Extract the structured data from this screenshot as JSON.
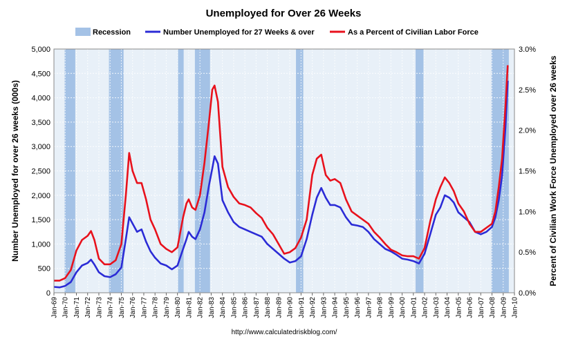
{
  "chart_data": {
    "type": "line",
    "title": "Unemployed for Over 26 Weeks",
    "ylabel": "Number Unemployed for over 26 weeks (000s)",
    "y2label": "Percent of Civilian Work Force Unemployed over 26 weeks",
    "source": "http://www.calculatedriskblog.com/",
    "ylim": [
      0,
      5000
    ],
    "y2lim": [
      0,
      3.0
    ],
    "yticks": [
      "0",
      "500",
      "1,000",
      "1,500",
      "2,000",
      "2,500",
      "3,000",
      "3,500",
      "4,000",
      "4,500",
      "5,000"
    ],
    "y2ticks": [
      "0.0%",
      "0.5%",
      "1.0%",
      "1.5%",
      "2.0%",
      "2.5%",
      "3.0%"
    ],
    "xticks": [
      "Jan-69",
      "Jan-70",
      "Jan-71",
      "Jan-72",
      "Jan-73",
      "Jan-74",
      "Jan-75",
      "Jan-76",
      "Jan-77",
      "Jan-78",
      "Jan-79",
      "Jan-80",
      "Jan-81",
      "Jan-82",
      "Jan-83",
      "Jan-84",
      "Jan-85",
      "Jan-86",
      "Jan-87",
      "Jan-88",
      "Jan-89",
      "Jan-90",
      "Jan-91",
      "Jan-92",
      "Jan-93",
      "Jan-94",
      "Jan-95",
      "Jan-96",
      "Jan-97",
      "Jan-98",
      "Jan-99",
      "Jan-00",
      "Jan-01",
      "Jan-02",
      "Jan-03",
      "Jan-04",
      "Jan-05",
      "Jan-06",
      "Jan-07",
      "Jan-08",
      "Jan-09",
      "Jan-10"
    ],
    "xrange": [
      1969,
      2010
    ],
    "legend": [
      "Recession",
      "Number Unemployed for 27 Weeks & over",
      "As a Percent of Civilian Labor Force"
    ],
    "colors": {
      "recession": "#a4c2e6",
      "number": "#2b2bd6",
      "percent": "#e8111c",
      "plot_bg": "#e8f0f8"
    },
    "recessions": [
      [
        1969.95,
        1970.9
      ],
      [
        1973.9,
        1975.2
      ],
      [
        1980.05,
        1980.55
      ],
      [
        1981.55,
        1982.9
      ],
      [
        1990.55,
        1991.2
      ],
      [
        2001.2,
        2001.9
      ],
      [
        2007.95,
        2009.5
      ]
    ],
    "series": [
      {
        "name": "Number Unemployed for 27 Weeks & over",
        "axis": "left",
        "x": [
          1969.0,
          1969.5,
          1970.0,
          1970.5,
          1971.0,
          1971.5,
          1972.0,
          1972.3,
          1972.6,
          1973.0,
          1973.5,
          1974.0,
          1974.5,
          1975.0,
          1975.4,
          1975.7,
          1976.0,
          1976.4,
          1976.8,
          1977.2,
          1977.6,
          1978.0,
          1978.5,
          1979.0,
          1979.5,
          1980.0,
          1980.5,
          1980.8,
          1981.0,
          1981.3,
          1981.6,
          1982.0,
          1982.4,
          1982.8,
          1983.1,
          1983.3,
          1983.6,
          1984.0,
          1984.5,
          1985.0,
          1985.5,
          1986.0,
          1986.5,
          1987.0,
          1987.5,
          1988.0,
          1988.5,
          1989.0,
          1989.5,
          1990.0,
          1990.5,
          1991.0,
          1991.5,
          1992.0,
          1992.4,
          1992.8,
          1993.2,
          1993.6,
          1994.0,
          1994.5,
          1995.0,
          1995.5,
          1996.0,
          1996.5,
          1997.0,
          1997.5,
          1998.0,
          1998.5,
          1999.0,
          1999.5,
          2000.0,
          2000.5,
          2001.0,
          2001.5,
          2002.0,
          2002.5,
          2003.0,
          2003.4,
          2003.8,
          2004.2,
          2004.6,
          2005.0,
          2005.5,
          2006.0,
          2006.5,
          2007.0,
          2007.5,
          2008.0,
          2008.3,
          2008.6,
          2008.9,
          2009.2,
          2009.4
        ],
        "values": [
          120,
          110,
          140,
          220,
          420,
          560,
          610,
          680,
          580,
          420,
          340,
          320,
          380,
          520,
          1100,
          1550,
          1420,
          1250,
          1300,
          1050,
          850,
          720,
          600,
          560,
          480,
          560,
          900,
          1100,
          1250,
          1150,
          1100,
          1300,
          1650,
          2200,
          2550,
          2800,
          2650,
          1900,
          1650,
          1450,
          1350,
          1300,
          1250,
          1200,
          1150,
          1000,
          900,
          800,
          700,
          620,
          650,
          750,
          1100,
          1600,
          1950,
          2150,
          1950,
          1800,
          1800,
          1750,
          1550,
          1400,
          1380,
          1350,
          1250,
          1100,
          1000,
          900,
          850,
          780,
          700,
          680,
          650,
          600,
          800,
          1200,
          1600,
          1750,
          2000,
          1950,
          1850,
          1650,
          1550,
          1450,
          1250,
          1200,
          1250,
          1350,
          1550,
          1900,
          2400,
          3400,
          4350
        ]
      },
      {
        "name": "As a Percent of Civilian Labor Force",
        "axis": "right",
        "x": [
          1969.0,
          1969.5,
          1970.0,
          1970.5,
          1971.0,
          1971.5,
          1972.0,
          1972.3,
          1972.6,
          1973.0,
          1973.5,
          1974.0,
          1974.5,
          1975.0,
          1975.4,
          1975.7,
          1976.0,
          1976.4,
          1976.8,
          1977.2,
          1977.6,
          1978.0,
          1978.5,
          1979.0,
          1979.5,
          1980.0,
          1980.5,
          1980.8,
          1981.0,
          1981.3,
          1981.6,
          1982.0,
          1982.4,
          1982.8,
          1983.1,
          1983.3,
          1983.6,
          1984.0,
          1984.5,
          1985.0,
          1985.5,
          1986.0,
          1986.5,
          1987.0,
          1987.5,
          1988.0,
          1988.5,
          1989.0,
          1989.5,
          1990.0,
          1990.5,
          1991.0,
          1991.5,
          1992.0,
          1992.4,
          1992.8,
          1993.2,
          1993.6,
          1994.0,
          1994.5,
          1995.0,
          1995.5,
          1996.0,
          1996.5,
          1997.0,
          1997.5,
          1998.0,
          1998.5,
          1999.0,
          1999.5,
          2000.0,
          2000.5,
          2001.0,
          2001.5,
          2002.0,
          2002.5,
          2003.0,
          2003.4,
          2003.8,
          2004.2,
          2004.6,
          2005.0,
          2005.5,
          2006.0,
          2006.5,
          2007.0,
          2007.5,
          2008.0,
          2008.3,
          2008.6,
          2008.9,
          2009.2,
          2009.4
        ],
        "values": [
          0.15,
          0.15,
          0.18,
          0.28,
          0.52,
          0.65,
          0.7,
          0.76,
          0.65,
          0.42,
          0.35,
          0.35,
          0.4,
          0.6,
          1.2,
          1.72,
          1.5,
          1.35,
          1.35,
          1.15,
          0.9,
          0.78,
          0.6,
          0.54,
          0.5,
          0.56,
          0.93,
          1.1,
          1.15,
          1.05,
          1.02,
          1.2,
          1.6,
          2.1,
          2.5,
          2.55,
          2.35,
          1.55,
          1.3,
          1.18,
          1.1,
          1.08,
          1.05,
          0.98,
          0.92,
          0.8,
          0.72,
          0.6,
          0.48,
          0.5,
          0.55,
          0.68,
          0.9,
          1.45,
          1.65,
          1.7,
          1.45,
          1.38,
          1.4,
          1.35,
          1.15,
          1.0,
          0.95,
          0.9,
          0.85,
          0.75,
          0.68,
          0.6,
          0.53,
          0.5,
          0.46,
          0.45,
          0.45,
          0.42,
          0.55,
          0.88,
          1.15,
          1.3,
          1.42,
          1.35,
          1.25,
          1.1,
          1.0,
          0.85,
          0.75,
          0.75,
          0.8,
          0.85,
          1.0,
          1.3,
          1.65,
          2.3,
          2.8
        ]
      }
    ]
  }
}
